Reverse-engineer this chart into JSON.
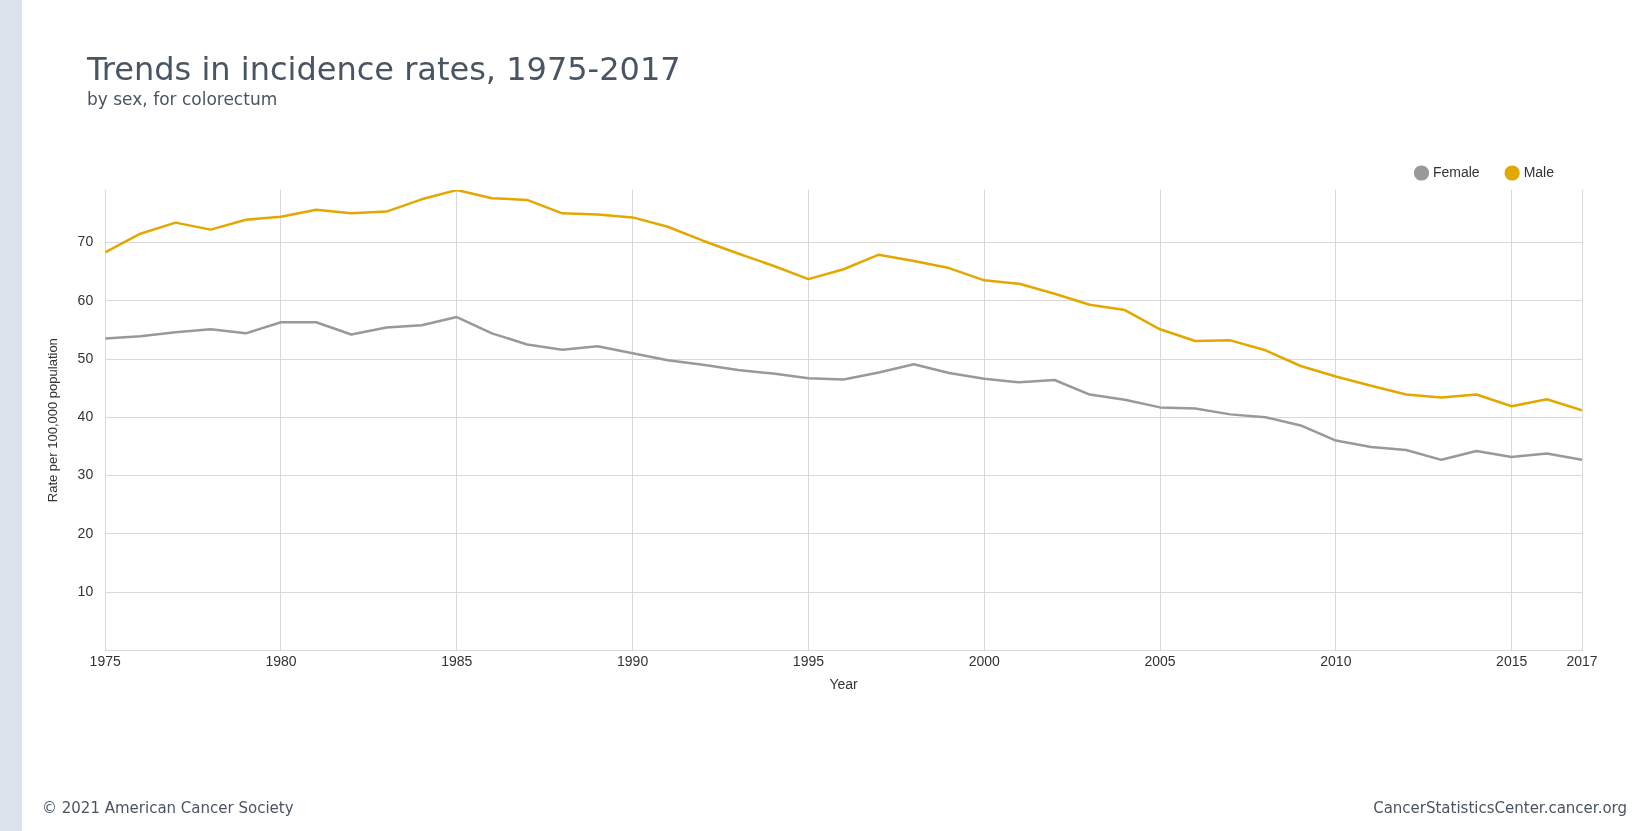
{
  "chart_data": {
    "type": "line",
    "title": "Trends in incidence rates, 1975-2017",
    "subtitle": "by sex, for colorectum",
    "xlabel": "Year",
    "ylabel": "Rate per 100,000 population",
    "x": [
      1975,
      1976,
      1977,
      1978,
      1979,
      1980,
      1981,
      1982,
      1983,
      1984,
      1985,
      1986,
      1987,
      1988,
      1989,
      1990,
      1991,
      1992,
      1993,
      1994,
      1995,
      1996,
      1997,
      1998,
      1999,
      2000,
      2001,
      2002,
      2003,
      2004,
      2005,
      2006,
      2007,
      2008,
      2009,
      2010,
      2011,
      2012,
      2013,
      2014,
      2015,
      2016,
      2017
    ],
    "series": [
      {
        "name": "Female",
        "color": "#999999",
        "values": [
          53.5,
          53.9,
          54.6,
          55.1,
          54.4,
          56.3,
          56.3,
          54.2,
          55.4,
          55.8,
          57.2,
          54.4,
          52.5,
          51.6,
          52.2,
          51.0,
          49.8,
          49.0,
          48.1,
          47.5,
          46.7,
          46.5,
          47.7,
          49.1,
          47.6,
          46.6,
          46.0,
          46.4,
          43.9,
          43.0,
          41.7,
          41.5,
          40.5,
          40.0,
          38.6,
          36.0,
          34.9,
          34.4,
          32.7,
          34.2,
          33.2,
          33.8,
          32.7
        ]
      },
      {
        "name": "Male",
        "color": "#e3a800",
        "values": [
          68.3,
          71.5,
          73.4,
          72.2,
          73.9,
          74.4,
          75.6,
          75.0,
          75.3,
          77.4,
          79.0,
          77.6,
          77.3,
          75.0,
          74.8,
          74.3,
          72.7,
          70.3,
          68.1,
          66.0,
          63.7,
          65.4,
          67.9,
          66.8,
          65.6,
          63.5,
          62.9,
          61.2,
          59.3,
          58.4,
          55.1,
          53.1,
          53.2,
          51.5,
          48.8,
          47.0,
          45.4,
          43.9,
          43.4,
          43.9,
          41.9,
          43.1,
          41.2
        ]
      }
    ],
    "xlim": [
      1975,
      2017
    ],
    "xticks": [
      1975,
      1980,
      1985,
      1990,
      1995,
      2000,
      2005,
      2010,
      2015,
      2017
    ],
    "ylim": [
      0,
      79
    ],
    "yticks": [
      10,
      20,
      30,
      40,
      50,
      60,
      70
    ],
    "grid": true,
    "legend": "top right",
    "marker": "none",
    "annotations": [
      "© 2021 American Cancer Society",
      "CancerStatisticsCenter.cancer.org"
    ]
  }
}
